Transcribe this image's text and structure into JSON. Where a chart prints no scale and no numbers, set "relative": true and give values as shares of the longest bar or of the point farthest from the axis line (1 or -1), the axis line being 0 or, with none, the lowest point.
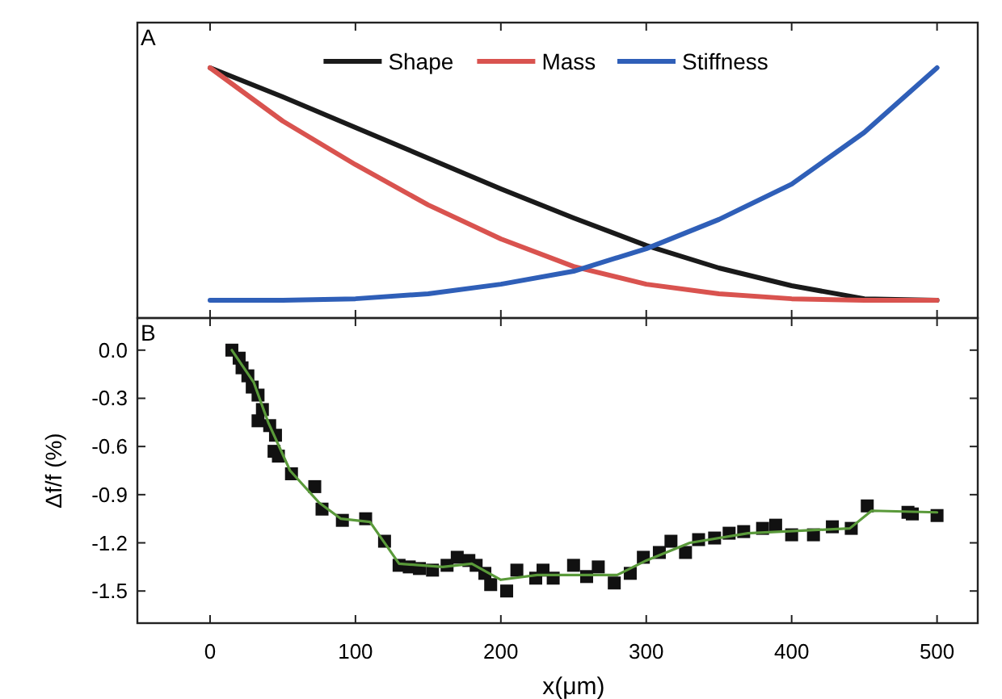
{
  "chart_data": [
    {
      "type": "line",
      "relative": true,
      "x": [
        0,
        50,
        100,
        150,
        200,
        250,
        300,
        350,
        400,
        450,
        500
      ],
      "xlim": [
        -50,
        528
      ],
      "xticks": [
        0,
        100,
        200,
        300,
        400,
        500
      ],
      "tick_labels": false,
      "legend": "top",
      "annotations": [
        "A"
      ],
      "series": [
        {
          "name": "Shape",
          "color": "#1a1a1a",
          "values": [
            1,
            0.884,
            0.761,
            0.639,
            0.516,
            0.4,
            0.29,
            0.2,
            0.129,
            0.077,
            0.071
          ]
        },
        {
          "name": "Mass",
          "color": "#d9534f",
          "values": [
            1,
            0.787,
            0.613,
            0.452,
            0.316,
            0.206,
            0.135,
            0.097,
            0.077,
            0.071,
            0.071
          ]
        },
        {
          "name": "Stiffness",
          "color": "#2f5fb8",
          "values": [
            0.071,
            0.071,
            0.077,
            0.097,
            0.135,
            0.187,
            0.277,
            0.394,
            0.535,
            0.742,
            1
          ]
        }
      ]
    },
    {
      "type": "scatter",
      "xlabel": "x(μm)",
      "ylabel": "Δf/f (%)",
      "xlim": [
        -50,
        528
      ],
      "ylim": [
        -1.7,
        0.2
      ],
      "xticks": [
        0,
        100,
        200,
        300,
        400,
        500
      ],
      "yticks": [
        {
          "value": 0,
          "label": "0.0"
        },
        {
          "value": -0.3,
          "label": "-0.3"
        },
        {
          "value": -0.6,
          "label": "-0.6"
        },
        {
          "value": -0.9,
          "label": "-0.9"
        },
        {
          "value": -1.2,
          "label": "-1.2"
        },
        {
          "value": -1.5,
          "label": "-1.5"
        }
      ],
      "annotations": [
        "B"
      ],
      "series": [
        {
          "marker": "square",
          "color": "#111111",
          "x": [
            15,
            20,
            22,
            26,
            29,
            33,
            36,
            33,
            41,
            45,
            44,
            47,
            56,
            72,
            77,
            91,
            107,
            120,
            130,
            137,
            144,
            153,
            163,
            170,
            178,
            183,
            189,
            193,
            204,
            211,
            224,
            229,
            236,
            250,
            259,
            267,
            278,
            289,
            298,
            309,
            317,
            327,
            336,
            347,
            357,
            367,
            380,
            389,
            400,
            415,
            428,
            441,
            452,
            480,
            483,
            500
          ],
          "values": [
            0,
            -0.05,
            -0.11,
            -0.16,
            -0.23,
            -0.28,
            -0.37,
            -0.44,
            -0.47,
            -0.53,
            -0.63,
            -0.66,
            -0.77,
            -0.85,
            -0.99,
            -1.06,
            -1.05,
            -1.19,
            -1.34,
            -1.35,
            -1.36,
            -1.37,
            -1.34,
            -1.29,
            -1.31,
            -1.34,
            -1.39,
            -1.46,
            -1.5,
            -1.37,
            -1.42,
            -1.37,
            -1.42,
            -1.34,
            -1.41,
            -1.35,
            -1.45,
            -1.39,
            -1.29,
            -1.26,
            -1.19,
            -1.26,
            -1.18,
            -1.17,
            -1.14,
            -1.13,
            -1.11,
            -1.09,
            -1.15,
            -1.15,
            -1.1,
            -1.11,
            -0.97,
            -1.01,
            -1.02,
            -1.03
          ]
        },
        {
          "type": "line",
          "marker": "none",
          "color": "#5a9a3a",
          "x": [
            15,
            30,
            40,
            55,
            75,
            90,
            110,
            130,
            160,
            180,
            200,
            225,
            280,
            300,
            330,
            370,
            440,
            455,
            500
          ],
          "values": [
            0,
            -0.2,
            -0.45,
            -0.75,
            -0.95,
            -1.05,
            -1.07,
            -1.33,
            -1.35,
            -1.33,
            -1.43,
            -1.4,
            -1.4,
            -1.31,
            -1.2,
            -1.14,
            -1.11,
            -1,
            -1.01
          ]
        }
      ]
    }
  ]
}
